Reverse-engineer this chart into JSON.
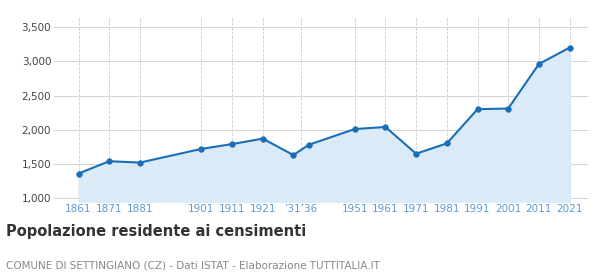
{
  "years": [
    1861,
    1871,
    1881,
    1901,
    1911,
    1921,
    1931,
    1936,
    1951,
    1961,
    1971,
    1981,
    1991,
    2001,
    2011,
    2021
  ],
  "population": [
    1360,
    1540,
    1520,
    1720,
    1790,
    1870,
    1630,
    1780,
    2010,
    2040,
    1650,
    1800,
    2300,
    2310,
    2960,
    3200
  ],
  "yticks": [
    1000,
    1500,
    2000,
    2500,
    3000,
    3500
  ],
  "ylim": [
    950,
    3650
  ],
  "xlim": [
    1853,
    2027
  ],
  "line_color": "#1a6eb5",
  "fill_color": "#daeaf7",
  "marker_color": "#1a6eb5",
  "title": "Popolazione residente ai censimenti",
  "subtitle": "COMUNE DI SETTINGIANO (CZ) - Dati ISTAT - Elaborazione TUTTITALIA.IT",
  "bg_color": "#ffffff",
  "grid_color": "#cccccc",
  "title_fontsize": 10.5,
  "subtitle_fontsize": 7.5,
  "tick_color": "#5b9bd5"
}
